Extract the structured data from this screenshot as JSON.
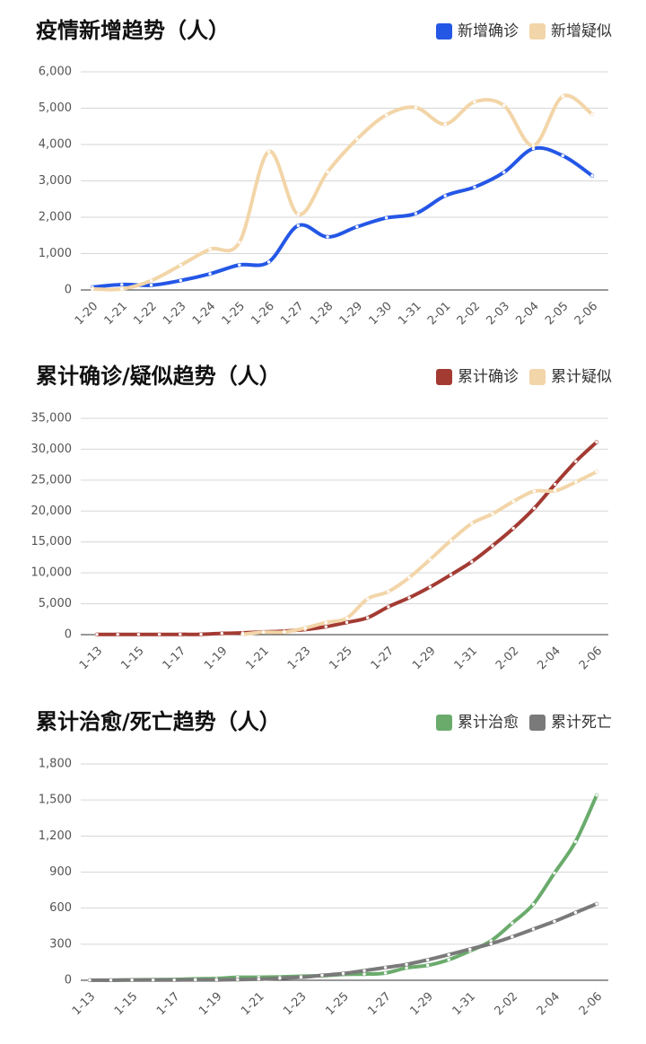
{
  "chart_data": [
    {
      "type": "line",
      "title": "疫情新增趋势（人）",
      "categories": [
        "1-20",
        "1-21",
        "1-22",
        "1-23",
        "1-24",
        "1-25",
        "1-26",
        "1-27",
        "1-28",
        "1-29",
        "1-30",
        "1-31",
        "2-01",
        "2-02",
        "2-03",
        "2-04",
        "2-05",
        "2-06"
      ],
      "series": [
        {
          "name": "新增确诊",
          "color": "#2457e6",
          "values": [
            77,
            149,
            131,
            259,
            444,
            688,
            769,
            1771,
            1459,
            1737,
            1982,
            2102,
            2590,
            2829,
            3235,
            3887,
            3694,
            3143
          ]
        },
        {
          "name": "新增疑似",
          "color": "#f2d5a8",
          "values": [
            27,
            26,
            257,
            680,
            1118,
            1309,
            3806,
            2077,
            3248,
            4148,
            4812,
            5019,
            4562,
            5173,
            5072,
            3971,
            5328,
            4833
          ]
        }
      ],
      "ylim": [
        0,
        6000
      ],
      "yticks": [
        0,
        {
          "value": 1000,
          "label": "1,000"
        },
        {
          "value": 2000,
          "label": "2,000"
        },
        {
          "value": 3000,
          "label": "3,000"
        },
        {
          "value": 4000,
          "label": "4,000"
        },
        {
          "value": 5000,
          "label": "5,000"
        },
        {
          "value": 6000,
          "label": "6,000"
        }
      ],
      "grid": true
    },
    {
      "type": "line",
      "title": "累计确诊/疑似趋势（人）",
      "categories": [
        "1-13",
        null,
        "1-15",
        null,
        "1-17",
        null,
        "1-19",
        null,
        "1-21",
        null,
        "1-23",
        null,
        "1-25",
        null,
        "1-27",
        null,
        "1-29",
        null,
        "1-31",
        null,
        "2-02",
        null,
        "2-04",
        null,
        "2-06"
      ],
      "series": [
        {
          "name": "累计确诊",
          "color": "#a33b33",
          "values": [
            41,
            41,
            41,
            41,
            45,
            62,
            198,
            291,
            440,
            571,
            830,
            1287,
            1975,
            2744,
            4515,
            5974,
            7711,
            9692,
            11791,
            14380,
            17205,
            20438,
            24324,
            28018,
            31161
          ]
        },
        {
          "name": "累计疑似",
          "color": "#f2d5a8",
          "values": [
            null,
            null,
            null,
            null,
            null,
            null,
            null,
            54,
            393,
            393,
            1072,
            1965,
            2684,
            5794,
            6973,
            9239,
            12167,
            15238,
            17988,
            19544,
            21558,
            23214,
            23260,
            24702,
            26359
          ]
        }
      ],
      "ylim": [
        0,
        35000
      ],
      "yticks": [
        0,
        {
          "value": 5000,
          "label": "5,000"
        },
        {
          "value": 10000,
          "label": "10,000"
        },
        {
          "value": 15000,
          "label": "15,000"
        },
        {
          "value": 20000,
          "label": "20,000"
        },
        {
          "value": 25000,
          "label": "25,000"
        },
        {
          "value": 30000,
          "label": "30,000"
        },
        {
          "value": 35000,
          "label": "35,000"
        }
      ],
      "grid": true
    },
    {
      "type": "line",
      "title": "累计治愈/死亡趋势（人）",
      "categories": [
        "1-13",
        null,
        "1-15",
        null,
        "1-17",
        null,
        "1-19",
        null,
        "1-21",
        null,
        "1-23",
        null,
        "1-25",
        null,
        "1-27",
        null,
        "1-29",
        null,
        "1-31",
        null,
        "2-02",
        null,
        "2-04",
        null,
        "2-06"
      ],
      "series": [
        {
          "name": "累计治愈",
          "color": "#6aab6c",
          "values": [
            0,
            0,
            3,
            5,
            7,
            12,
            15,
            25,
            25,
            28,
            34,
            38,
            49,
            51,
            60,
            103,
            124,
            171,
            243,
            328,
            475,
            632,
            892,
            1153,
            1540
          ]
        },
        {
          "name": "累计死亡",
          "color": "#7a7a7a",
          "values": [
            1,
            1,
            2,
            2,
            2,
            3,
            3,
            6,
            9,
            17,
            25,
            41,
            56,
            80,
            106,
            132,
            170,
            213,
            259,
            304,
            361,
            425,
            490,
            563,
            636
          ]
        }
      ],
      "ylim": [
        0,
        1800
      ],
      "yticks": [
        0,
        300,
        600,
        900,
        {
          "value": 1200,
          "label": "1,200"
        },
        {
          "value": 1500,
          "label": "1,500"
        },
        {
          "value": 1800,
          "label": "1,800"
        }
      ],
      "grid": true
    }
  ]
}
